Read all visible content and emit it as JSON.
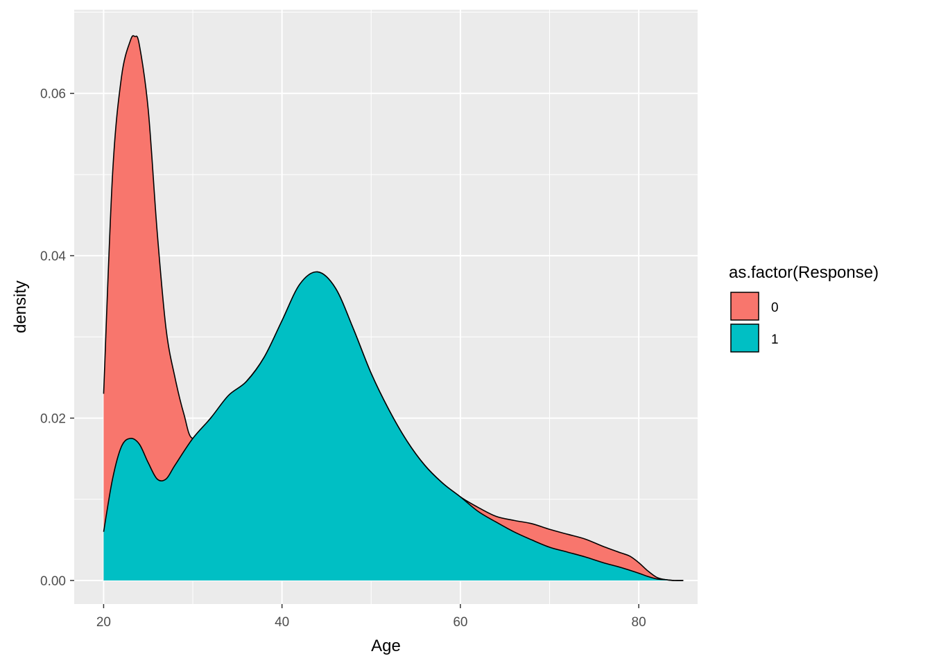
{
  "chart_data": {
    "type": "area",
    "title": "",
    "xlabel": "Age",
    "ylabel": "density",
    "xlim": [
      16.7,
      86.6
    ],
    "ylim": [
      -0.0029,
      0.0703
    ],
    "x_ticks": [
      20,
      40,
      60,
      80
    ],
    "x_tick_labels": [
      "20",
      "40",
      "60",
      "80"
    ],
    "y_ticks": [
      0.0,
      0.02,
      0.04,
      0.06
    ],
    "y_tick_labels": [
      "0.00",
      "0.02",
      "0.04",
      "0.06"
    ],
    "grid": true,
    "legend": {
      "title": "as.factor(Response)",
      "placement": "right"
    },
    "series": [
      {
        "name": "0",
        "color": "#F8766D",
        "x": [
          20,
          21,
          22,
          23,
          23.5,
          24,
          25,
          26,
          27,
          28,
          29,
          30,
          32,
          34,
          36,
          38,
          40,
          42,
          44,
          46,
          48,
          50,
          52,
          54,
          56,
          58,
          60,
          62,
          64,
          66,
          68,
          70,
          72,
          74,
          76,
          78,
          79,
          80,
          81,
          82,
          83,
          84,
          85
        ],
        "y": [
          0.023,
          0.05,
          0.062,
          0.0665,
          0.067,
          0.066,
          0.058,
          0.043,
          0.031,
          0.025,
          0.0205,
          0.0175,
          0.02,
          0.0225,
          0.0245,
          0.0275,
          0.032,
          0.0365,
          0.038,
          0.036,
          0.031,
          0.0255,
          0.021,
          0.0172,
          0.0142,
          0.012,
          0.0103,
          0.009,
          0.0079,
          0.0074,
          0.007,
          0.0063,
          0.0057,
          0.0051,
          0.0042,
          0.0034,
          0.003,
          0.0022,
          0.0012,
          0.0004,
          0.0001,
          0.0,
          0.0
        ]
      },
      {
        "name": "1",
        "color": "#00BFC4",
        "x": [
          20,
          21,
          22,
          23,
          24,
          25,
          26,
          27,
          28,
          30,
          32,
          34,
          36,
          38,
          40,
          42,
          44,
          46,
          48,
          50,
          52,
          54,
          56,
          58,
          60,
          62,
          64,
          66,
          68,
          70,
          72,
          74,
          76,
          78,
          80,
          81,
          82,
          83,
          84,
          85
        ],
        "y": [
          0.006,
          0.0125,
          0.0165,
          0.0175,
          0.0168,
          0.0145,
          0.0125,
          0.0125,
          0.0142,
          0.0175,
          0.02,
          0.0228,
          0.0245,
          0.0275,
          0.032,
          0.0365,
          0.038,
          0.036,
          0.031,
          0.0255,
          0.021,
          0.0172,
          0.0142,
          0.012,
          0.0103,
          0.0085,
          0.0072,
          0.006,
          0.005,
          0.0041,
          0.0035,
          0.0029,
          0.0022,
          0.0016,
          0.0009,
          0.0005,
          0.0002,
          0.0001,
          0.0,
          0.0
        ]
      }
    ]
  }
}
